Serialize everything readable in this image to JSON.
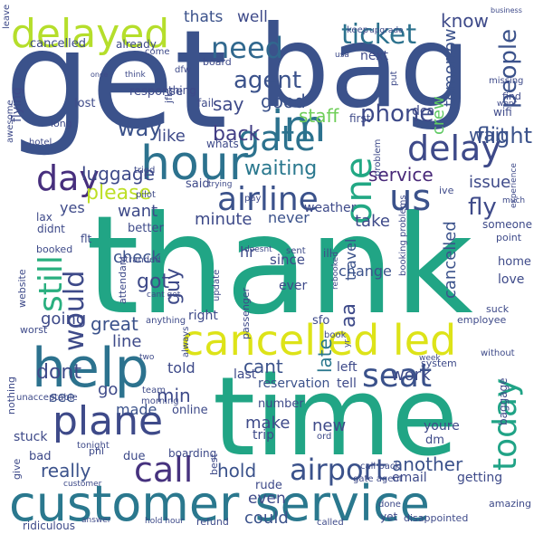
{
  "word_cloud": {
    "words": [
      {
        "text": "get",
        "color": "#3b528b"
      },
      {
        "text": "bag",
        "color": "#3b528b"
      },
      {
        "text": "thank",
        "color": "#21a585"
      },
      {
        "text": "time",
        "color": "#21a585"
      },
      {
        "text": "customer service",
        "color": "#2a788e"
      },
      {
        "text": "cancelled led",
        "color": "#dde318"
      },
      {
        "text": "help",
        "color": "#2c728e"
      },
      {
        "text": "plane",
        "color": "#3e4a89"
      },
      {
        "text": "hour",
        "color": "#2c728e"
      },
      {
        "text": "delayed",
        "color": "#b5de2b"
      },
      {
        "text": "delay",
        "color": "#3e4a89"
      },
      {
        "text": "im",
        "color": "#2c728e"
      },
      {
        "text": "need",
        "color": "#31688e"
      },
      {
        "text": "gate",
        "color": "#2c728e"
      },
      {
        "text": "one",
        "color": "#22a884"
      },
      {
        "text": "airline",
        "color": "#3b528b"
      },
      {
        "text": "us",
        "color": "#3b528b"
      },
      {
        "text": "day",
        "color": "#472f7d"
      },
      {
        "text": "still",
        "color": "#29af7f"
      },
      {
        "text": "would",
        "color": "#3e4a89"
      },
      {
        "text": "call",
        "color": "#46327e"
      },
      {
        "text": "airport",
        "color": "#3b528b"
      },
      {
        "text": "today",
        "color": "#20a386"
      },
      {
        "text": "seat",
        "color": "#3b528b"
      },
      {
        "text": "late",
        "color": "#2a788e"
      },
      {
        "text": "ticket",
        "color": "#2c728e"
      },
      {
        "text": "agent",
        "color": "#3b528b"
      },
      {
        "text": "phone",
        "color": "#3e4a89"
      },
      {
        "text": "people",
        "color": "#3b528b"
      },
      {
        "text": "please",
        "color": "#bddf26"
      },
      {
        "text": "waiting",
        "color": "#2a788e"
      },
      {
        "text": "back",
        "color": "#433e85"
      },
      {
        "text": "way",
        "color": "#3b528b"
      },
      {
        "text": "luggage",
        "color": "#3e4a89"
      },
      {
        "text": "fly",
        "color": "#3e4a89"
      },
      {
        "text": "flight",
        "color": "#3b528b"
      },
      {
        "text": "service",
        "color": "#482878"
      },
      {
        "text": "issue",
        "color": "#3e4a89"
      },
      {
        "text": "wait",
        "color": "#3b528b"
      },
      {
        "text": "crew",
        "color": "#5ec962"
      },
      {
        "text": "staff",
        "color": "#6ece58"
      },
      {
        "text": "good",
        "color": "#3b528b"
      },
      {
        "text": "say",
        "color": "#3e4a89"
      },
      {
        "text": "know",
        "color": "#3e4a89"
      },
      {
        "text": "tomorrow",
        "color": "#3b528b"
      },
      {
        "text": "thats",
        "color": "#3b528b"
      },
      {
        "text": "well",
        "color": "#3e4a89"
      },
      {
        "text": "like",
        "color": "#3e4a89"
      },
      {
        "text": "got",
        "color": "#3e4a89"
      },
      {
        "text": "guy",
        "color": "#3e4a89"
      },
      {
        "text": "want",
        "color": "#3e4a89"
      },
      {
        "text": "check",
        "color": "#3b528b"
      },
      {
        "text": "minute",
        "color": "#3e4a89"
      },
      {
        "text": "never",
        "color": "#3b528b"
      },
      {
        "text": "take",
        "color": "#3e4a89"
      },
      {
        "text": "change",
        "color": "#3b528b"
      },
      {
        "text": "travel",
        "color": "#3b528b"
      },
      {
        "text": "cancelled",
        "color": "#3b528b"
      },
      {
        "text": "going",
        "color": "#3e4a89"
      },
      {
        "text": "great",
        "color": "#3b528b"
      },
      {
        "text": "line",
        "color": "#3e4a89"
      },
      {
        "text": "cant",
        "color": "#3b528b"
      },
      {
        "text": "told",
        "color": "#3e4a89"
      },
      {
        "text": "dont",
        "color": "#3e4a89"
      },
      {
        "text": "go",
        "color": "#3e4a89"
      },
      {
        "text": "min",
        "color": "#3e4a89"
      },
      {
        "text": "made",
        "color": "#3b528b"
      },
      {
        "text": "see",
        "color": "#3b528b"
      },
      {
        "text": "make",
        "color": "#3e4a89"
      },
      {
        "text": "really",
        "color": "#3b528b"
      },
      {
        "text": "hold",
        "color": "#3b528b"
      },
      {
        "text": "work",
        "color": "#3e4a89"
      },
      {
        "text": "new",
        "color": "#3e4a89"
      },
      {
        "text": "another",
        "color": "#3b528b"
      },
      {
        "text": "could",
        "color": "#3b528b"
      },
      {
        "text": "even",
        "color": "#3e4a89"
      },
      {
        "text": "yes",
        "color": "#3e4a89"
      },
      {
        "text": "aa",
        "color": "#3e4a89"
      },
      {
        "text": "hr",
        "color": "#3e4a89"
      },
      {
        "text": "since",
        "color": "#3e4a89"
      },
      {
        "text": "ever",
        "color": "#3e4a89"
      },
      {
        "text": "right",
        "color": "#3e4a89"
      },
      {
        "text": "last",
        "color": "#3e4a89"
      },
      {
        "text": "reservation",
        "color": "#3b528b"
      },
      {
        "text": "tell",
        "color": "#3e4a89"
      },
      {
        "text": "left",
        "color": "#3e4a89"
      },
      {
        "text": "online",
        "color": "#3e4a89"
      },
      {
        "text": "number",
        "color": "#3e4a89"
      },
      {
        "text": "trip",
        "color": "#3e4a89"
      },
      {
        "text": "email",
        "color": "#3e4a89"
      },
      {
        "text": "getting",
        "color": "#3e4a89"
      },
      {
        "text": "youre",
        "color": "#3e4a89"
      },
      {
        "text": "baggage",
        "color": "#3e4a89"
      },
      {
        "text": "dm",
        "color": "#3e4a89"
      },
      {
        "text": "system",
        "color": "#3e4a89"
      },
      {
        "text": "employee",
        "color": "#3e4a89"
      },
      {
        "text": "suck",
        "color": "#3e4a89"
      },
      {
        "text": "love",
        "color": "#3e4a89"
      },
      {
        "text": "home",
        "color": "#3e4a89"
      },
      {
        "text": "someone",
        "color": "#3e4a89"
      },
      {
        "text": "point",
        "color": "#3e4a89"
      },
      {
        "text": "lax",
        "color": "#3e4a89"
      },
      {
        "text": "didnt",
        "color": "#3e4a89"
      },
      {
        "text": "booked",
        "color": "#3e4a89"
      },
      {
        "text": "website",
        "color": "#3e4a89"
      },
      {
        "text": "flt",
        "color": "#3e4a89"
      },
      {
        "text": "better",
        "color": "#3e4a89"
      },
      {
        "text": "attendant",
        "color": "#3e4a89"
      },
      {
        "text": "passenger",
        "color": "#3e4a89"
      },
      {
        "text": "update",
        "color": "#3e4a89"
      },
      {
        "text": "anything",
        "color": "#3e4a89"
      },
      {
        "text": "nothing",
        "color": "#3e4a89"
      },
      {
        "text": "stuck",
        "color": "#3e4a89"
      },
      {
        "text": "bad",
        "color": "#3e4a89"
      },
      {
        "text": "give",
        "color": "#3e4a89"
      },
      {
        "text": "phl",
        "color": "#3e4a89"
      },
      {
        "text": "due",
        "color": "#3e4a89"
      },
      {
        "text": "boarding",
        "color": "#3e4a89"
      },
      {
        "text": "best",
        "color": "#3e4a89"
      },
      {
        "text": "rude",
        "color": "#3e4a89"
      },
      {
        "text": "call back",
        "color": "#3e4a89"
      },
      {
        "text": "gate agent",
        "color": "#3e4a89"
      },
      {
        "text": "disappointed",
        "color": "#3e4a89"
      },
      {
        "text": "amazing",
        "color": "#3e4a89"
      },
      {
        "text": "yet",
        "color": "#3e4a89"
      },
      {
        "text": "done",
        "color": "#3e4a89"
      },
      {
        "text": "called",
        "color": "#3e4a89"
      },
      {
        "text": "refund",
        "color": "#3e4a89"
      },
      {
        "text": "hold hour",
        "color": "#3e4a89"
      },
      {
        "text": "answer",
        "color": "#3e4a89"
      },
      {
        "text": "ridiculous",
        "color": "#3e4a89"
      },
      {
        "text": "customer",
        "color": "#3e4a89"
      },
      {
        "text": "sfo",
        "color": "#3e4a89"
      },
      {
        "text": "book",
        "color": "#3e4a89"
      },
      {
        "text": "ill",
        "color": "#3e4a89"
      },
      {
        "text": "sent",
        "color": "#3e4a89"
      },
      {
        "text": "doesnt",
        "color": "#3e4a89"
      },
      {
        "text": "pay",
        "color": "#3e4a89"
      },
      {
        "text": "ive",
        "color": "#3e4a89"
      },
      {
        "text": "much",
        "color": "#3e4a89"
      },
      {
        "text": "weather",
        "color": "#3e4a89"
      },
      {
        "text": "said",
        "color": "#3e4a89"
      },
      {
        "text": "pilot",
        "color": "#3e4a89"
      },
      {
        "text": "tried",
        "color": "#3e4a89"
      },
      {
        "text": "whats",
        "color": "#3e4a89"
      },
      {
        "text": "wifi",
        "color": "#3e4a89"
      },
      {
        "text": "find",
        "color": "#3e4a89"
      },
      {
        "text": "experience",
        "color": "#3e4a89"
      },
      {
        "text": "first",
        "color": "#3e4a89"
      },
      {
        "text": "dca",
        "color": "#3e4a89"
      },
      {
        "text": "wont",
        "color": "#3e4a89"
      },
      {
        "text": "missing",
        "color": "#3e4a89"
      },
      {
        "text": "next",
        "color": "#3e4a89"
      },
      {
        "text": "keep",
        "color": "#3e4a89"
      },
      {
        "text": "upgrade",
        "color": "#3e4a89"
      },
      {
        "text": "business",
        "color": "#3e4a89"
      },
      {
        "text": "cancelled",
        "color": "#3e4a89"
      },
      {
        "text": "already",
        "color": "#3e4a89"
      },
      {
        "text": "come",
        "color": "#3e4a89"
      },
      {
        "text": "flying",
        "color": "#3e4a89"
      },
      {
        "text": "lost",
        "color": "#3e4a89"
      },
      {
        "text": "response",
        "color": "#3e4a89"
      },
      {
        "text": "thing",
        "color": "#3e4a89"
      },
      {
        "text": "fail",
        "color": "#3e4a89"
      },
      {
        "text": "jfk",
        "color": "#3e4a89"
      },
      {
        "text": "board",
        "color": "#3e4a89"
      },
      {
        "text": "long",
        "color": "#3e4a89"
      },
      {
        "text": "awesome",
        "color": "#3e4a89"
      },
      {
        "text": "hotel",
        "color": "#3e4a89"
      },
      {
        "text": "worst",
        "color": "#3e4a89"
      },
      {
        "text": "unacceptable",
        "color": "#3e4a89"
      },
      {
        "text": "tonight",
        "color": "#3e4a89"
      },
      {
        "text": "morning",
        "color": "#3e4a89"
      },
      {
        "text": "always",
        "color": "#3e4a89"
      },
      {
        "text": "stranded",
        "color": "#3e4a89"
      },
      {
        "text": "cant get",
        "color": "#3e4a89"
      },
      {
        "text": "rebooked",
        "color": "#3e4a89"
      },
      {
        "text": "without",
        "color": "#3e4a89"
      },
      {
        "text": "booking problems",
        "color": "#3e4a89"
      },
      {
        "text": "problem",
        "color": "#3e4a89"
      },
      {
        "text": "trying",
        "color": "#3e4a89"
      },
      {
        "text": "usa",
        "color": "#3e4a89"
      },
      {
        "text": "put",
        "color": "#3e4a89"
      },
      {
        "text": "leave",
        "color": "#3e4a89"
      },
      {
        "text": "yr",
        "color": "#3e4a89"
      },
      {
        "text": "week",
        "color": "#3e4a89"
      },
      {
        "text": "team",
        "color": "#3e4a89"
      },
      {
        "text": "two",
        "color": "#3e4a89"
      },
      {
        "text": "ord",
        "color": "#3e4a89"
      },
      {
        "text": "think",
        "color": "#3e4a89"
      },
      {
        "text": "once",
        "color": "#3e4a89"
      },
      {
        "text": "dfw",
        "color": "#3e4a89"
      }
    ]
  }
}
